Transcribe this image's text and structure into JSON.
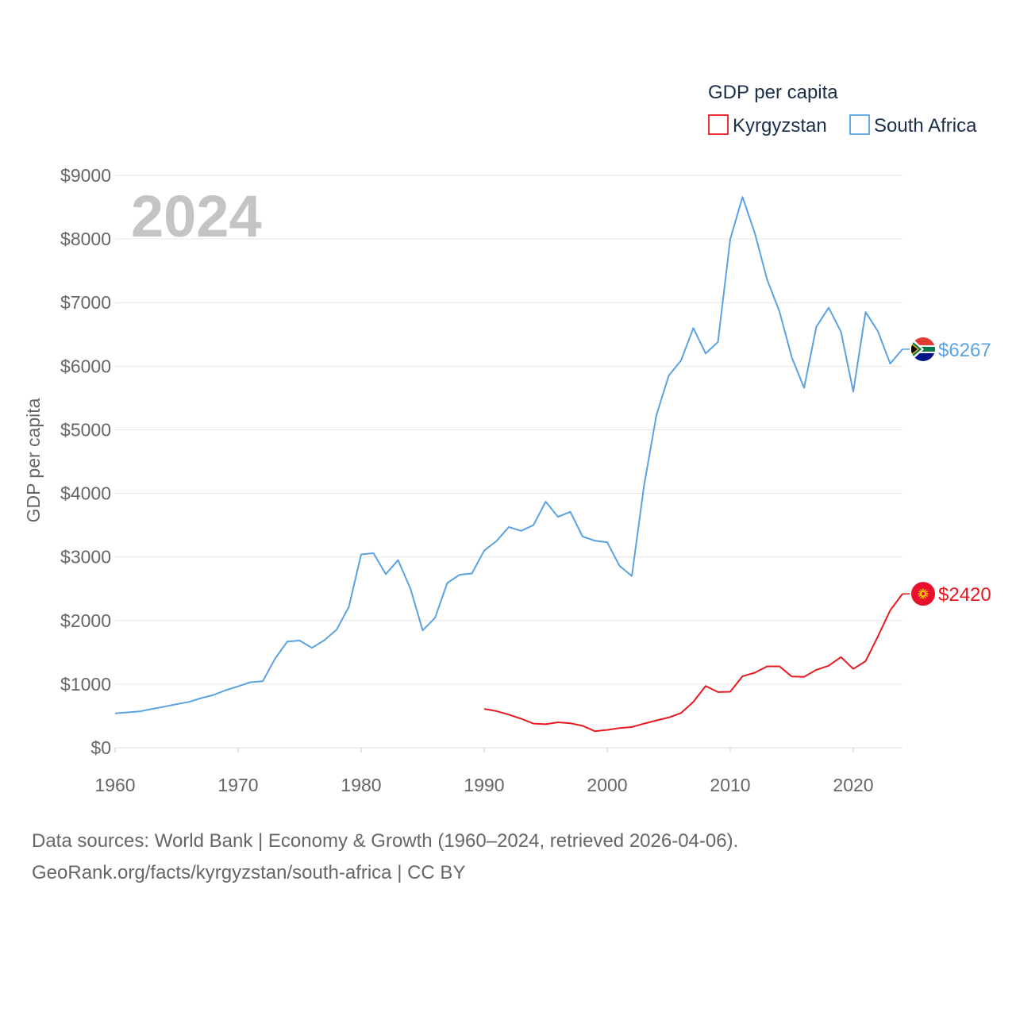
{
  "chart_data": {
    "type": "line",
    "title": "GDP per capita",
    "ylabel": "GDP per capita",
    "xlabel": "",
    "current_year": "2024",
    "xlim": [
      1960,
      2024
    ],
    "ylim": [
      0,
      9000
    ],
    "x_ticks": [
      1960,
      1970,
      1980,
      1990,
      2000,
      2010,
      2020
    ],
    "y_ticks": [
      0,
      1000,
      2000,
      3000,
      4000,
      5000,
      6000,
      7000,
      8000,
      9000
    ],
    "y_tick_labels": [
      "$0",
      "$1000",
      "$2000",
      "$3000",
      "$4000",
      "$5000",
      "$6000",
      "$7000",
      "$8000",
      "$9000"
    ],
    "legend": {
      "title": "GDP per capita",
      "position": "top-right"
    },
    "series": [
      {
        "name": "Kyrgyzstan",
        "color": "#e8191f",
        "flag": "kyrgyzstan-flag-icon",
        "end_label": "$2420",
        "x": [
          1990,
          1991,
          1992,
          1993,
          1994,
          1995,
          1996,
          1997,
          1998,
          1999,
          2000,
          2001,
          2002,
          2003,
          2004,
          2005,
          2006,
          2007,
          2008,
          2009,
          2010,
          2011,
          2012,
          2013,
          2014,
          2015,
          2016,
          2017,
          2018,
          2019,
          2020,
          2021,
          2022,
          2023,
          2024
        ],
        "values": [
          610,
          575,
          520,
          455,
          380,
          370,
          400,
          385,
          345,
          260,
          280,
          310,
          325,
          380,
          430,
          475,
          545,
          720,
          970,
          875,
          880,
          1125,
          1180,
          1280,
          1280,
          1120,
          1115,
          1225,
          1290,
          1425,
          1240,
          1360,
          1750,
          2160,
          2420
        ]
      },
      {
        "name": "South Africa",
        "color": "#5aa2e2",
        "flag": "south-africa-flag-icon",
        "end_label": "$6267",
        "x": [
          1960,
          1961,
          1962,
          1963,
          1964,
          1965,
          1966,
          1967,
          1968,
          1969,
          1970,
          1971,
          1972,
          1973,
          1974,
          1975,
          1976,
          1977,
          1978,
          1979,
          1980,
          1981,
          1982,
          1983,
          1984,
          1985,
          1986,
          1987,
          1988,
          1989,
          1990,
          1991,
          1992,
          1993,
          1994,
          1995,
          1996,
          1997,
          1998,
          1999,
          2000,
          2001,
          2002,
          2003,
          2004,
          2005,
          2006,
          2007,
          2008,
          2009,
          2010,
          2011,
          2012,
          2013,
          2014,
          2015,
          2016,
          2017,
          2018,
          2019,
          2020,
          2021,
          2022,
          2023,
          2024
        ],
        "values": [
          540,
          555,
          570,
          610,
          645,
          685,
          720,
          780,
          830,
          905,
          965,
          1030,
          1045,
          1400,
          1670,
          1685,
          1570,
          1690,
          1855,
          2215,
          3040,
          3060,
          2730,
          2950,
          2505,
          1845,
          2040,
          2590,
          2720,
          2740,
          3100,
          3250,
          3470,
          3410,
          3500,
          3870,
          3630,
          3710,
          3320,
          3255,
          3230,
          2860,
          2700,
          4130,
          5230,
          5850,
          6090,
          6600,
          6200,
          6380,
          8000,
          8660,
          8090,
          7360,
          6860,
          6140,
          5660,
          6620,
          6920,
          6540,
          5600,
          6850,
          6550,
          6040,
          6267
        ]
      }
    ]
  },
  "source": {
    "line1": "Data sources: World Bank | Economy & Growth (1960–2024, retrieved 2026-04-06).",
    "line2": "GeoRank.org/facts/kyrgyzstan/south-africa | CC BY"
  }
}
